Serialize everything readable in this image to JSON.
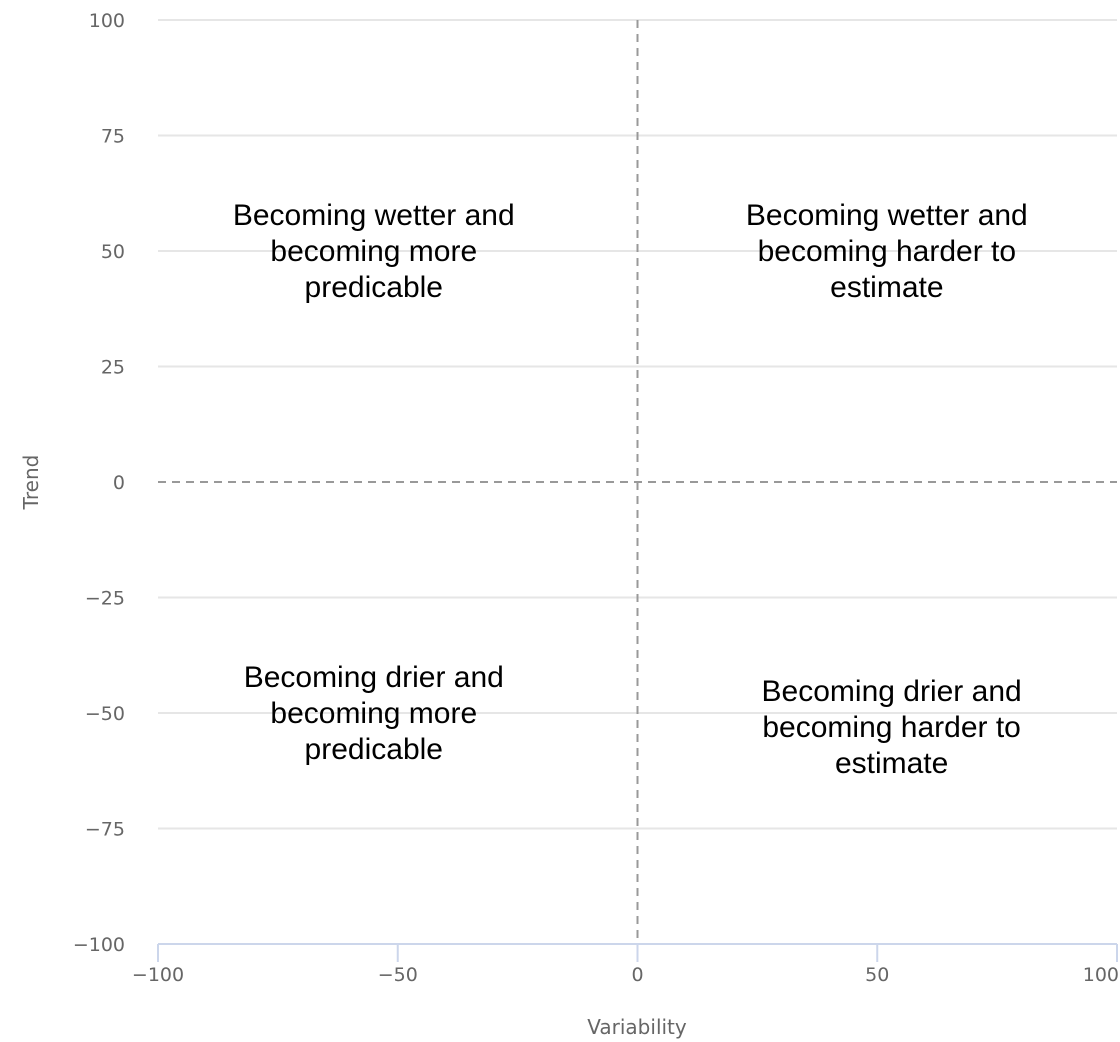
{
  "chart_data": {
    "type": "scatter",
    "title": "",
    "xlabel": "Variability",
    "ylabel": "Trend",
    "xlim": [
      -100,
      100
    ],
    "ylim": [
      -100,
      100
    ],
    "x_ticks": [
      "−100",
      "−50",
      "0",
      "50",
      "100"
    ],
    "y_ticks": [
      "100",
      "75",
      "50",
      "25",
      "0",
      "−25",
      "−50",
      "−75",
      "−100"
    ],
    "x_tick_values": [
      -100,
      -50,
      0,
      50,
      100
    ],
    "y_tick_values": [
      100,
      75,
      50,
      25,
      0,
      -25,
      -50,
      -75,
      -100
    ],
    "grid": true,
    "reference_lines": {
      "x": 0,
      "y": 0,
      "style": "dashed"
    },
    "series": [],
    "annotations": [
      {
        "name": "top-left",
        "x": -55,
        "y": 50,
        "lines": [
          "Becoming wetter and",
          "becoming more",
          "predicable"
        ]
      },
      {
        "name": "top-right",
        "x": 52,
        "y": 50,
        "lines": [
          "Becoming wetter and",
          "becoming harder to",
          "estimate"
        ]
      },
      {
        "name": "bottom-left",
        "x": -55,
        "y": -50,
        "lines": [
          "Becoming drier and",
          "becoming more",
          "predicable"
        ]
      },
      {
        "name": "bottom-right",
        "x": 53,
        "y": -53,
        "lines": [
          "Becoming drier and",
          "becoming harder to",
          "estimate"
        ]
      }
    ],
    "colors": {
      "grid": "#e6e6e6",
      "x_axis_line": "#ccd6eb",
      "reference_line": "#999999",
      "tick_text": "#666666",
      "annotation_text": "#000000"
    }
  }
}
